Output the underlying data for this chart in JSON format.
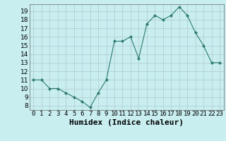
{
  "x": [
    0,
    1,
    2,
    3,
    4,
    5,
    6,
    7,
    8,
    9,
    10,
    11,
    12,
    13,
    14,
    15,
    16,
    17,
    18,
    19,
    20,
    21,
    22,
    23
  ],
  "y": [
    11.0,
    11.0,
    10.0,
    10.0,
    9.5,
    9.0,
    8.5,
    7.8,
    9.5,
    11.0,
    15.5,
    15.5,
    16.0,
    13.5,
    17.5,
    18.5,
    18.0,
    18.5,
    19.5,
    18.5,
    16.5,
    15.0,
    13.0,
    13.0
  ],
  "line_color": "#2d7a6e",
  "marker": "D",
  "marker_size": 2.0,
  "xlabel": "Humidex (Indice chaleur)",
  "ylim": [
    7.5,
    19.8
  ],
  "xlim": [
    -0.5,
    23.5
  ],
  "yticks": [
    8,
    9,
    10,
    11,
    12,
    13,
    14,
    15,
    16,
    17,
    18,
    19
  ],
  "xtick_labels": [
    "0",
    "1",
    "2",
    "3",
    "4",
    "5",
    "6",
    "7",
    "8",
    "9",
    "10",
    "11",
    "12",
    "13",
    "14",
    "15",
    "16",
    "17",
    "18",
    "19",
    "20",
    "21",
    "22",
    "23"
  ],
  "bg_color": "#c8eef0",
  "grid_color": "#b0c8d0",
  "tick_fontsize": 6.5,
  "xlabel_fontsize": 8
}
